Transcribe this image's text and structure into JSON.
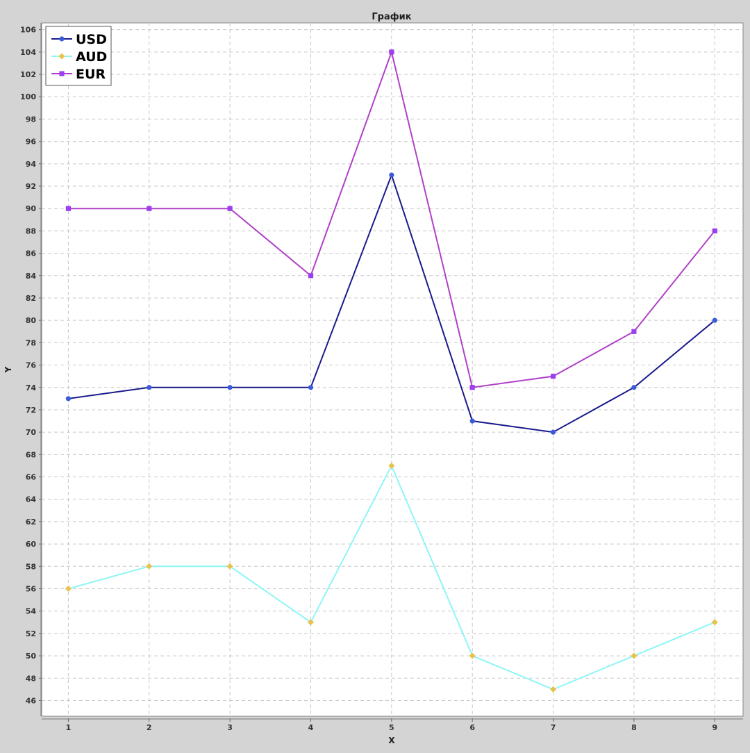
{
  "chart_data": {
    "type": "line",
    "title": "График",
    "xlabel": "X",
    "ylabel": "Y",
    "x": [
      1,
      2,
      3,
      4,
      5,
      6,
      7,
      8,
      9
    ],
    "xlim": [
      0.67,
      9.35
    ],
    "ylim": [
      44.6,
      106.6
    ],
    "yticks": [
      46,
      48,
      50,
      52,
      54,
      56,
      58,
      60,
      62,
      64,
      66,
      68,
      70,
      72,
      74,
      76,
      78,
      80,
      82,
      84,
      86,
      88,
      90,
      92,
      94,
      96,
      98,
      100,
      102,
      104,
      106
    ],
    "grid": true,
    "legend_position": "top-left",
    "series": [
      {
        "name": "USD",
        "values": [
          73,
          74,
          74,
          74,
          93,
          71,
          70,
          74,
          80
        ],
        "line_color": "#1a1a8c",
        "marker_color": "#3b5bdb",
        "marker": "circle"
      },
      {
        "name": "AUD",
        "values": [
          56,
          58,
          58,
          53,
          67,
          50,
          47,
          50,
          53
        ],
        "line_color": "#8ff5f5",
        "marker_color": "#e8c24a",
        "marker": "diamond"
      },
      {
        "name": "EUR",
        "values": [
          90,
          90,
          90,
          84,
          104,
          74,
          75,
          79,
          88
        ],
        "line_color": "#b040c8",
        "marker_color": "#9b3ff0",
        "marker": "square"
      }
    ]
  }
}
